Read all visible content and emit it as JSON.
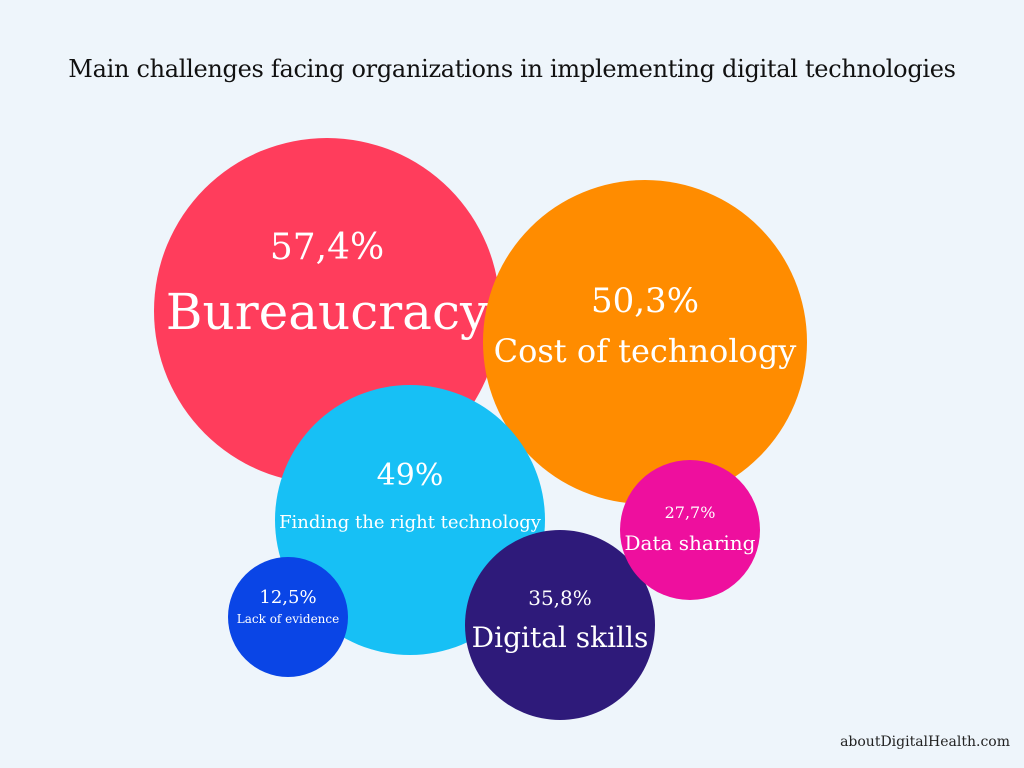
{
  "title": "Main challenges facing organizations in implementing digital technologies",
  "source": "aboutDigitalHealth.com",
  "chart_data": {
    "type": "bubble",
    "unit": "%",
    "bubbles": [
      {
        "label": "Bureaucracy",
        "value_text": "57,4%",
        "value": 57.4,
        "color": "#ff3d5c"
      },
      {
        "label": "Cost of technology",
        "value_text": "50,3%",
        "value": 50.3,
        "color": "#ff8c00"
      },
      {
        "label": "Finding the right technology",
        "value_text": "49%",
        "value": 49,
        "color": "#17c0f5"
      },
      {
        "label": "Digital skills",
        "value_text": "35,8%",
        "value": 35.8,
        "color": "#2e1a7a"
      },
      {
        "label": "Data sharing",
        "value_text": "27,7%",
        "value": 27.7,
        "color": "#ee0f9e"
      },
      {
        "label": "Lack of evidence",
        "value_text": "12,5%",
        "value": 12.5,
        "color": "#0a45e6"
      }
    ]
  }
}
